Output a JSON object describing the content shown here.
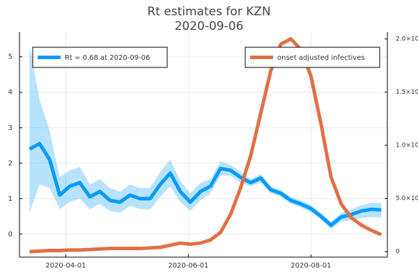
{
  "chart_data": {
    "type": "line",
    "title": "Rt estimates for KZN",
    "subtitle": "2020-09-06",
    "x": [
      "2020-03-14",
      "2020-03-19",
      "2020-03-24",
      "2020-03-29",
      "2020-04-03",
      "2020-04-08",
      "2020-04-13",
      "2020-04-18",
      "2020-04-23",
      "2020-04-28",
      "2020-05-03",
      "2020-05-08",
      "2020-05-13",
      "2020-05-18",
      "2020-05-23",
      "2020-05-28",
      "2020-06-02",
      "2020-06-07",
      "2020-06-12",
      "2020-06-17",
      "2020-06-22",
      "2020-06-27",
      "2020-07-02",
      "2020-07-07",
      "2020-07-12",
      "2020-07-17",
      "2020-07-22",
      "2020-07-27",
      "2020-08-01",
      "2020-08-06",
      "2020-08-11",
      "2020-08-16",
      "2020-08-21",
      "2020-08-26",
      "2020-08-31",
      "2020-09-05"
    ],
    "series": [
      {
        "name": "Rt = 0.68 at 2020-09-06",
        "color": "#009afa",
        "legend": "top-left",
        "values": [
          2.4,
          2.55,
          2.1,
          1.1,
          1.35,
          1.45,
          1.05,
          1.2,
          0.95,
          0.9,
          1.1,
          1.0,
          1.0,
          1.4,
          1.72,
          1.2,
          0.9,
          1.2,
          1.35,
          1.85,
          1.8,
          1.6,
          1.45,
          1.58,
          1.25,
          1.15,
          0.95,
          0.85,
          0.72,
          0.5,
          0.25,
          0.48,
          0.55,
          0.65,
          0.7,
          0.68
        ],
        "lower": [
          0.6,
          1.4,
          1.3,
          0.7,
          0.9,
          1.0,
          0.7,
          0.85,
          0.65,
          0.6,
          0.8,
          0.7,
          0.7,
          1.05,
          1.35,
          0.9,
          0.65,
          0.95,
          1.15,
          1.65,
          1.65,
          1.45,
          1.35,
          1.45,
          1.15,
          1.05,
          0.85,
          0.75,
          0.62,
          0.4,
          0.15,
          0.35,
          0.4,
          0.45,
          0.48,
          0.48
        ],
        "upper": [
          5.3,
          3.8,
          2.9,
          1.6,
          1.8,
          1.9,
          1.4,
          1.55,
          1.3,
          1.2,
          1.4,
          1.3,
          1.3,
          1.75,
          2.1,
          1.5,
          1.15,
          1.45,
          1.55,
          2.05,
          1.95,
          1.75,
          1.55,
          1.7,
          1.35,
          1.25,
          1.05,
          0.95,
          0.82,
          0.6,
          0.35,
          0.6,
          0.7,
          0.82,
          0.88,
          0.88
        ]
      },
      {
        "name": "onset adjusted infectives",
        "color": "#e26f46",
        "axis": "y2",
        "legend": "top-right",
        "values": [
          0,
          50,
          100,
          100,
          150,
          150,
          200,
          250,
          300,
          300,
          300,
          300,
          350,
          400,
          600,
          800,
          700,
          800,
          1100,
          1800,
          3500,
          6000,
          9000,
          13000,
          17000,
          19500,
          20000,
          19000,
          16500,
          12000,
          7000,
          4500,
          3200,
          2500,
          2000,
          1600
        ]
      }
    ],
    "xlim": [
      "2020-03-09",
      "2020-09-08"
    ],
    "xticks": [
      "2020-04-01",
      "2020-06-01",
      "2020-08-01"
    ],
    "ylim": [
      -0.65,
      5.7
    ],
    "yticks": [
      0,
      1,
      2,
      3,
      4,
      5
    ],
    "y2lim": [
      -520,
      20650
    ],
    "y2ticks": [
      0,
      {
        "value": 5000,
        "label": "5.0×10³"
      },
      {
        "value": 10000,
        "label": "1.0×10⁴"
      },
      {
        "value": 15000,
        "label": "1.5×10⁴"
      },
      {
        "value": 20000,
        "label": "2.0×10⁴"
      }
    ],
    "grid": true
  }
}
